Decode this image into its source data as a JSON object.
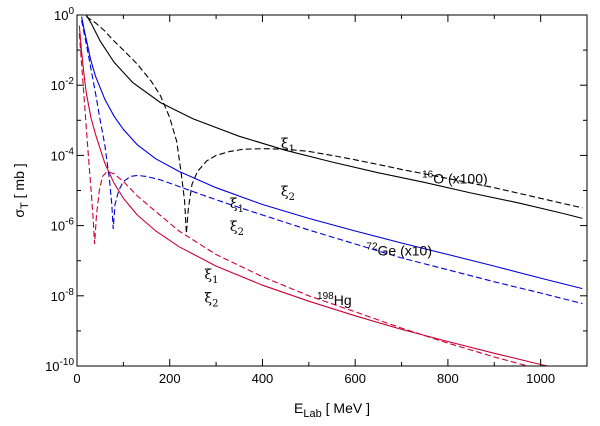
{
  "chart_data": {
    "type": "line",
    "xlabel": "E",
    "xlabel_sub": "Lab",
    "xlabel_unit": "[ MeV ]",
    "ylabel": "σ",
    "ylabel_sub": "T",
    "ylabel_unit": "[ mb ]",
    "xlim": [
      0,
      1100
    ],
    "ylim": [
      1e-10,
      1
    ],
    "yscale": "log",
    "xticks": [
      0,
      200,
      400,
      600,
      800,
      1000
    ],
    "xtick_labels": [
      "0",
      "200",
      "400",
      "600",
      "800",
      "1000"
    ],
    "yticks": [
      {
        "value": 1,
        "mantissa": "10",
        "exp": "0"
      },
      {
        "value": 0.01,
        "mantissa": "10",
        "exp": "-2"
      },
      {
        "value": 0.0001,
        "mantissa": "10",
        "exp": "-4"
      },
      {
        "value": 1e-06,
        "mantissa": "10",
        "exp": "-6"
      },
      {
        "value": 1e-08,
        "mantissa": "10",
        "exp": "-8"
      },
      {
        "value": 1e-10,
        "mantissa": "10",
        "exp": "-10"
      }
    ],
    "grid": false,
    "series": [
      {
        "color": "#000000",
        "dash": false,
        "x": [
          20,
          30,
          50,
          80,
          120,
          180,
          250,
          350,
          450,
          550,
          650,
          750,
          850,
          950,
          1050,
          1090
        ],
        "y": [
          1.0,
          0.6,
          0.18,
          0.045,
          0.012,
          0.0032,
          0.0011,
          0.00035,
          0.00014,
          6.5e-05,
          3.2e-05,
          1.7e-05,
          8.5e-06,
          4.5e-06,
          2.2e-06,
          1.6e-06
        ]
      },
      {
        "color": "#000000",
        "dash": true,
        "x": [
          20,
          40,
          60,
          80,
          100,
          130,
          160,
          180,
          200,
          215,
          225,
          232,
          236,
          240,
          248,
          260,
          280,
          300,
          330,
          360,
          400,
          450,
          500,
          550,
          600,
          650,
          700,
          800,
          900,
          1000,
          1090
        ],
        "y": [
          0.9,
          0.6,
          0.35,
          0.18,
          0.1,
          0.04,
          0.013,
          0.005,
          0.0012,
          0.00025,
          3e-05,
          5e-06,
          6e-07,
          3e-06,
          1.5e-05,
          3.5e-05,
          7e-05,
          0.0001,
          0.00013,
          0.00015,
          0.000155,
          0.00015,
          0.00013,
          0.0001,
          7.5e-05,
          5.5e-05,
          4e-05,
          2.2e-05,
          1.2e-05,
          6e-06,
          3.2e-06
        ]
      },
      {
        "color": "#0000dd",
        "dash": false,
        "x": [
          10,
          15,
          20,
          30,
          40,
          60,
          80,
          100,
          130,
          170,
          220,
          300,
          400,
          500,
          600,
          700,
          800,
          900,
          1000,
          1090
        ],
        "y": [
          0.9,
          0.4,
          0.2,
          0.05,
          0.018,
          0.004,
          0.0013,
          0.00055,
          0.0002,
          8e-05,
          3.5e-05,
          1.2e-05,
          4e-06,
          1.6e-06,
          7e-07,
          3.2e-07,
          1.5e-07,
          7e-08,
          3.2e-08,
          1.6e-08
        ]
      },
      {
        "color": "#0000dd",
        "dash": true,
        "x": [
          10,
          20,
          30,
          40,
          50,
          60,
          70,
          75,
          78,
          82,
          90,
          100,
          115,
          130,
          150,
          180,
          220,
          270,
          330,
          400,
          500,
          600,
          700,
          800,
          900,
          1000,
          1090
        ],
        "y": [
          0.7,
          0.15,
          0.03,
          0.006,
          0.001,
          0.0002,
          2e-05,
          4e-06,
          8e-07,
          4e-06,
          1e-05,
          1.8e-05,
          2.5e-05,
          2.7e-05,
          2.5e-05,
          2e-05,
          1.3e-05,
          7.5e-06,
          4e-06,
          2e-06,
          7.5e-07,
          3e-07,
          1.2e-07,
          5.5e-08,
          2.5e-08,
          1.2e-08,
          6e-09
        ]
      },
      {
        "color": "#cc0033",
        "dash": false,
        "x": [
          5,
          10,
          15,
          20,
          30,
          40,
          60,
          80,
          100,
          130,
          170,
          220,
          300,
          400,
          500,
          600,
          700,
          800,
          900,
          1000,
          1090
        ],
        "y": [
          0.5,
          0.09,
          0.02,
          0.006,
          0.0012,
          0.0004,
          6e-05,
          1.6e-05,
          6e-06,
          2e-06,
          7e-07,
          2.5e-07,
          7e-08,
          2e-08,
          7e-09,
          2.7e-09,
          1.1e-09,
          5e-10,
          2.3e-10,
          1.1e-10,
          6e-11
        ]
      },
      {
        "color": "#cc0033",
        "dash": true,
        "x": [
          5,
          10,
          15,
          20,
          25,
          30,
          35,
          38,
          42,
          48,
          55,
          65,
          80,
          100,
          130,
          170,
          220,
          300,
          400,
          500,
          600,
          700,
          800,
          900,
          1000,
          1090
        ],
        "y": [
          0.3,
          0.04,
          0.005,
          0.0006,
          8e-05,
          1.2e-05,
          1.5e-06,
          3e-07,
          2e-06,
          1e-05,
          2.5e-05,
          3.5e-05,
          3e-05,
          1.8e-05,
          7e-06,
          2.5e-06,
          7e-07,
          1.5e-07,
          3.5e-08,
          1e-08,
          3.5e-09,
          1.2e-09,
          4.5e-10,
          1.8e-10,
          8e-11,
          4.5e-11
        ]
      }
    ],
    "annotations": [
      {
        "kind": "series",
        "x": 815,
        "y": 1.6e-05,
        "sup": "16",
        "main": "O (x100)"
      },
      {
        "kind": "series",
        "x": 695,
        "y": 1.4e-07,
        "sup": "72",
        "main": "Ge (x10)"
      },
      {
        "kind": "series",
        "x": 555,
        "y": 5.5e-09,
        "sup": "198",
        "main": "Hg"
      },
      {
        "kind": "xi",
        "x": 455,
        "y": 0.00016,
        "main": "ξ",
        "sub": "1"
      },
      {
        "kind": "xi",
        "x": 455,
        "y": 7e-06,
        "main": "ξ",
        "sub": "2"
      },
      {
        "kind": "xi",
        "x": 345,
        "y": 3.2e-06,
        "main": "ξ",
        "sub": "1"
      },
      {
        "kind": "xi",
        "x": 345,
        "y": 7e-07,
        "main": "ξ",
        "sub": "2"
      },
      {
        "kind": "xi",
        "x": 290,
        "y": 3e-08,
        "main": "ξ",
        "sub": "1"
      },
      {
        "kind": "xi",
        "x": 290,
        "y": 6.5e-09,
        "main": "ξ",
        "sub": "2"
      }
    ]
  }
}
